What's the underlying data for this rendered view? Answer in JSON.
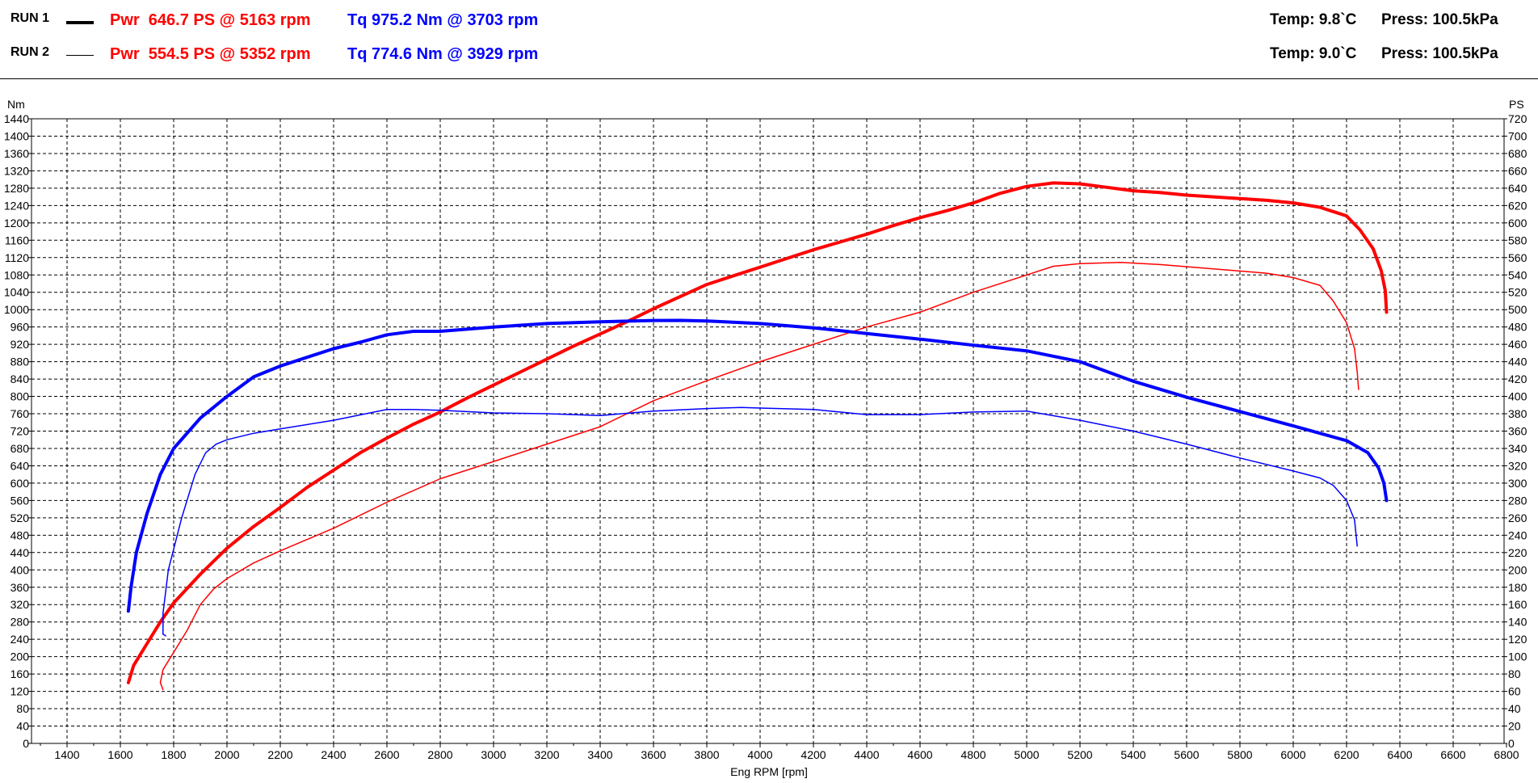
{
  "runs": [
    {
      "label": "RUN 1",
      "pwr": "Pwr  646.7 PS @ 5163 rpm",
      "tq": "Tq 975.2 Nm @ 3703 rpm",
      "temp": "Temp: 9.8`C",
      "press": "Press: 100.5kPa"
    },
    {
      "label": "RUN 2",
      "pwr": "Pwr  554.5 PS @ 5352 rpm",
      "tq": "Tq 774.6 Nm @ 3929 rpm",
      "temp": "Temp: 9.0`C",
      "press": "Press: 100.5kPa"
    }
  ],
  "colors": {
    "power": "#ff0000",
    "torque": "#0000ff",
    "grid": "#000000"
  },
  "chart_data": {
    "type": "line",
    "xlabel": "Eng RPM [rpm]",
    "ylabel_left": "Nm",
    "ylabel_right": "PS",
    "xlim": [
      1200,
      6800
    ],
    "ylim_left": [
      0,
      1440
    ],
    "ylim_right": [
      0,
      720
    ],
    "x_ticks": [
      1400,
      1600,
      1800,
      2000,
      2200,
      2400,
      2600,
      2800,
      3000,
      3200,
      3400,
      3600,
      3800,
      4000,
      4200,
      4400,
      4600,
      4800,
      5000,
      5200,
      5400,
      5600,
      5800,
      6000,
      6200,
      6400,
      6600,
      6800
    ],
    "y_ticks_left": [
      0,
      40,
      80,
      120,
      160,
      200,
      240,
      280,
      320,
      360,
      400,
      440,
      480,
      520,
      560,
      600,
      640,
      680,
      720,
      760,
      800,
      840,
      880,
      920,
      960,
      1000,
      1040,
      1080,
      1120,
      1160,
      1200,
      1240,
      1280,
      1320,
      1360,
      1400,
      1440
    ],
    "y_ticks_right": [
      0,
      20,
      40,
      60,
      80,
      100,
      120,
      140,
      160,
      180,
      200,
      220,
      240,
      260,
      280,
      300,
      320,
      340,
      360,
      380,
      400,
      420,
      440,
      460,
      480,
      500,
      520,
      540,
      560,
      580,
      600,
      620,
      640,
      660,
      680,
      700,
      720
    ],
    "grid": true,
    "series": [
      {
        "name": "RUN 1",
        "quantity": "power",
        "unit": "PS",
        "axis": "right",
        "color": "#ff0000",
        "width": 4,
        "points": [
          [
            1630,
            70
          ],
          [
            1650,
            90
          ],
          [
            1700,
            115
          ],
          [
            1750,
            140
          ],
          [
            1800,
            162
          ],
          [
            1900,
            195
          ],
          [
            2000,
            225
          ],
          [
            2100,
            250
          ],
          [
            2200,
            272
          ],
          [
            2300,
            295
          ],
          [
            2400,
            315
          ],
          [
            2500,
            335
          ],
          [
            2600,
            352
          ],
          [
            2700,
            368
          ],
          [
            2800,
            382
          ],
          [
            2900,
            398
          ],
          [
            3000,
            413
          ],
          [
            3100,
            428
          ],
          [
            3200,
            443
          ],
          [
            3300,
            458
          ],
          [
            3400,
            472
          ],
          [
            3500,
            486
          ],
          [
            3600,
            501
          ],
          [
            3700,
            515
          ],
          [
            3800,
            529
          ],
          [
            3900,
            539
          ],
          [
            4000,
            549
          ],
          [
            4100,
            559
          ],
          [
            4200,
            569
          ],
          [
            4300,
            578
          ],
          [
            4400,
            587
          ],
          [
            4500,
            597
          ],
          [
            4600,
            606
          ],
          [
            4700,
            614
          ],
          [
            4800,
            623
          ],
          [
            4900,
            634
          ],
          [
            5000,
            642
          ],
          [
            5100,
            646
          ],
          [
            5200,
            645
          ],
          [
            5300,
            641
          ],
          [
            5400,
            637
          ],
          [
            5500,
            635
          ],
          [
            5600,
            632
          ],
          [
            5700,
            630
          ],
          [
            5800,
            628
          ],
          [
            5900,
            626
          ],
          [
            6000,
            623
          ],
          [
            6100,
            618
          ],
          [
            6200,
            608
          ],
          [
            6250,
            592
          ],
          [
            6300,
            570
          ],
          [
            6330,
            545
          ],
          [
            6345,
            522
          ],
          [
            6350,
            497
          ]
        ]
      },
      {
        "name": "RUN 2",
        "quantity": "power",
        "unit": "PS",
        "axis": "right",
        "color": "#ff0000",
        "width": 1.5,
        "points": [
          [
            1760,
            62
          ],
          [
            1750,
            70
          ],
          [
            1760,
            85
          ],
          [
            1800,
            105
          ],
          [
            1850,
            130
          ],
          [
            1900,
            160
          ],
          [
            1950,
            178
          ],
          [
            2000,
            190
          ],
          [
            2100,
            208
          ],
          [
            2200,
            222
          ],
          [
            2400,
            248
          ],
          [
            2600,
            278
          ],
          [
            2800,
            305
          ],
          [
            3000,
            325
          ],
          [
            3200,
            345
          ],
          [
            3400,
            365
          ],
          [
            3500,
            380
          ],
          [
            3600,
            395
          ],
          [
            3800,
            418
          ],
          [
            4000,
            440
          ],
          [
            4200,
            460
          ],
          [
            4400,
            480
          ],
          [
            4600,
            497
          ],
          [
            4800,
            520
          ],
          [
            5000,
            540
          ],
          [
            5100,
            550
          ],
          [
            5200,
            553
          ],
          [
            5352,
            554.5
          ],
          [
            5500,
            552
          ],
          [
            5700,
            547
          ],
          [
            5900,
            542
          ],
          [
            6000,
            537
          ],
          [
            6100,
            528
          ],
          [
            6150,
            510
          ],
          [
            6200,
            485
          ],
          [
            6230,
            455
          ],
          [
            6240,
            428
          ],
          [
            6245,
            408
          ]
        ]
      },
      {
        "name": "RUN 1",
        "quantity": "torque",
        "unit": "Nm",
        "axis": "left",
        "color": "#0000ff",
        "width": 4,
        "points": [
          [
            1630,
            305
          ],
          [
            1640,
            360
          ],
          [
            1660,
            440
          ],
          [
            1700,
            530
          ],
          [
            1750,
            620
          ],
          [
            1800,
            680
          ],
          [
            1900,
            750
          ],
          [
            2000,
            800
          ],
          [
            2100,
            845
          ],
          [
            2200,
            870
          ],
          [
            2300,
            890
          ],
          [
            2400,
            910
          ],
          [
            2500,
            925
          ],
          [
            2600,
            942
          ],
          [
            2700,
            950
          ],
          [
            2800,
            950
          ],
          [
            2900,
            955
          ],
          [
            3000,
            960
          ],
          [
            3200,
            968
          ],
          [
            3400,
            972
          ],
          [
            3600,
            975
          ],
          [
            3703,
            975.2
          ],
          [
            3800,
            974
          ],
          [
            4000,
            968
          ],
          [
            4200,
            958
          ],
          [
            4400,
            945
          ],
          [
            4600,
            932
          ],
          [
            4800,
            918
          ],
          [
            5000,
            905
          ],
          [
            5200,
            880
          ],
          [
            5400,
            835
          ],
          [
            5600,
            798
          ],
          [
            5800,
            765
          ],
          [
            6000,
            732
          ],
          [
            6100,
            715
          ],
          [
            6200,
            698
          ],
          [
            6280,
            670
          ],
          [
            6320,
            635
          ],
          [
            6340,
            600
          ],
          [
            6350,
            560
          ]
        ]
      },
      {
        "name": "RUN 2",
        "quantity": "torque",
        "unit": "Nm",
        "axis": "left",
        "color": "#0000ff",
        "width": 1.5,
        "points": [
          [
            1770,
            248
          ],
          [
            1760,
            252
          ],
          [
            1760,
            300
          ],
          [
            1780,
            400
          ],
          [
            1830,
            520
          ],
          [
            1880,
            620
          ],
          [
            1920,
            670
          ],
          [
            1960,
            690
          ],
          [
            2000,
            700
          ],
          [
            2100,
            715
          ],
          [
            2200,
            725
          ],
          [
            2400,
            745
          ],
          [
            2600,
            770
          ],
          [
            2700,
            770
          ],
          [
            2800,
            768
          ],
          [
            3000,
            762
          ],
          [
            3200,
            760
          ],
          [
            3400,
            756
          ],
          [
            3600,
            766
          ],
          [
            3800,
            772
          ],
          [
            3929,
            774.6
          ],
          [
            4000,
            773
          ],
          [
            4200,
            770
          ],
          [
            4400,
            758
          ],
          [
            4600,
            758
          ],
          [
            4800,
            764
          ],
          [
            5000,
            766
          ],
          [
            5200,
            745
          ],
          [
            5400,
            720
          ],
          [
            5600,
            690
          ],
          [
            5800,
            658
          ],
          [
            6000,
            628
          ],
          [
            6100,
            612
          ],
          [
            6150,
            595
          ],
          [
            6200,
            560
          ],
          [
            6230,
            515
          ],
          [
            6240,
            455
          ]
        ]
      }
    ]
  }
}
